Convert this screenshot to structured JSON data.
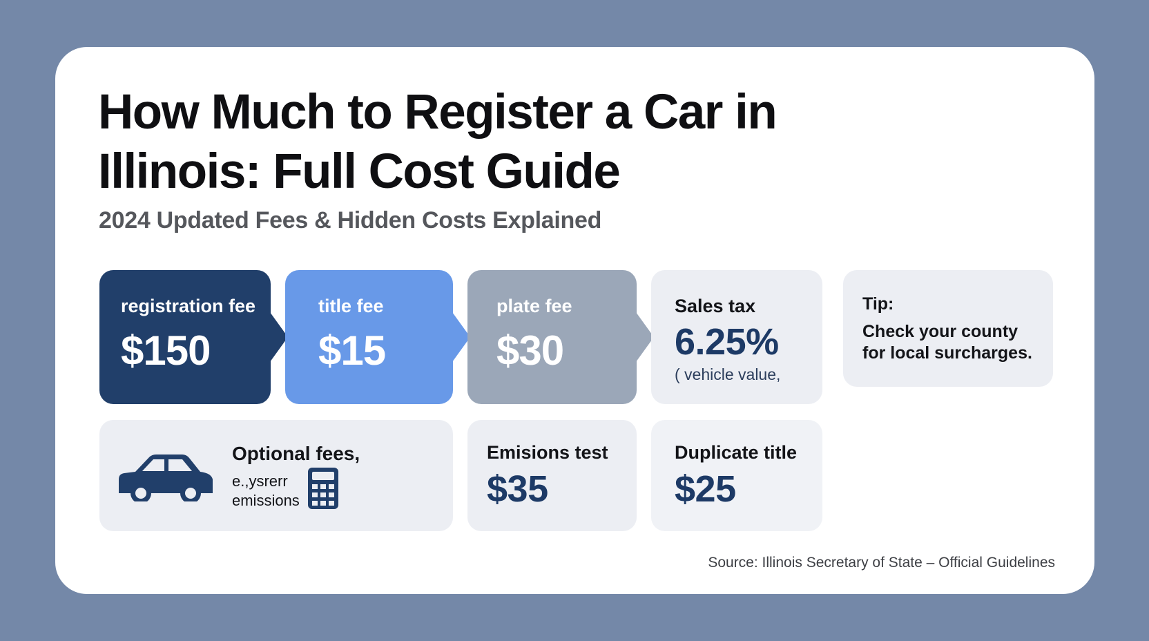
{
  "title": "How Much to Register a Car in Illinois: Full Cost Guide",
  "subtitle": "2024 Updated Fees & Hidden Costs Explained",
  "fees": {
    "registration": {
      "label": "registration fee",
      "value": "$150",
      "color": "#213f6a"
    },
    "title": {
      "label": "title fee",
      "value": "$15",
      "color": "#6899e8"
    },
    "plate": {
      "label": "plate fee",
      "value": "$30",
      "color": "#9ba7b8"
    },
    "sales_tax": {
      "label": "Sales tax",
      "value": "6.25%",
      "note": "( vehicle value,"
    }
  },
  "tip": {
    "label": "Tip:",
    "text": "Check your county for local surcharges."
  },
  "optional": {
    "label": "Optional fees,",
    "line1": "e.,ysrerr",
    "line2": "emissions",
    "icons": [
      "car-icon",
      "calculator-icon"
    ]
  },
  "emissions": {
    "label": "Emisions test",
    "value": "$35"
  },
  "duplicate": {
    "label": "Duplicate title",
    "value": "$25"
  },
  "source": "Source: Illinois Secretary of State – Official Guidelines",
  "colors": {
    "background": "#7488a8",
    "card": "#ffffff",
    "navy": "#213f6a",
    "accent_blue": "#6899e8",
    "slate": "#9ba7b8",
    "light_tile": "#eceef3"
  }
}
